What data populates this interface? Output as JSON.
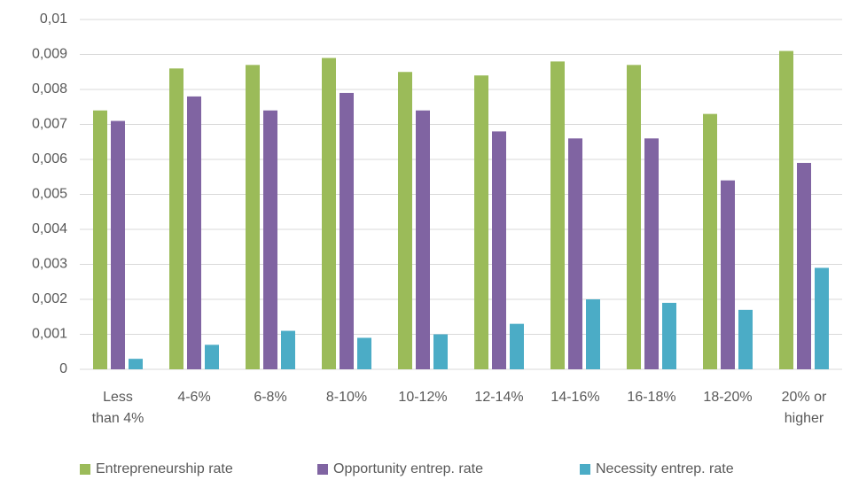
{
  "chart_data": {
    "type": "bar",
    "categories": [
      "Less than 4%",
      "4-6%",
      "6-8%",
      "8-10%",
      "10-12%",
      "12-14%",
      "14-16%",
      "16-18%",
      "18-20%",
      "20% or higher"
    ],
    "series": [
      {
        "name": "Entrepreneurship rate",
        "color": "#9bbb59",
        "values": [
          0.0074,
          0.0086,
          0.0087,
          0.0089,
          0.0085,
          0.0084,
          0.0088,
          0.0087,
          0.0073,
          0.0091
        ]
      },
      {
        "name": "Opportunity entrep. rate",
        "color": "#8064a2",
        "values": [
          0.0071,
          0.0078,
          0.0074,
          0.0079,
          0.0074,
          0.0068,
          0.0066,
          0.0066,
          0.0054,
          0.0059
        ]
      },
      {
        "name": "Necessity entrep. rate",
        "color": "#4bacc6",
        "values": [
          0.0003,
          0.0007,
          0.0011,
          0.0009,
          0.001,
          0.0013,
          0.002,
          0.0019,
          0.0017,
          0.0029
        ]
      }
    ],
    "ylim": [
      0,
      0.01
    ],
    "yticks": [
      0,
      {
        "value": 0.001,
        "label": "0,001"
      },
      {
        "value": 0.002,
        "label": "0,002"
      },
      {
        "value": 0.003,
        "label": "0,003"
      },
      {
        "value": 0.004,
        "label": "0,004"
      },
      {
        "value": 0.005,
        "label": "0,005"
      },
      {
        "value": 0.006,
        "label": "0,006"
      },
      {
        "value": 0.007,
        "label": "0,007"
      },
      {
        "value": 0.008,
        "label": "0,008"
      },
      {
        "value": 0.009,
        "label": "0,009"
      },
      {
        "value": 0.01,
        "label": "0,01"
      }
    ],
    "grid": true,
    "legend": "bottom"
  }
}
